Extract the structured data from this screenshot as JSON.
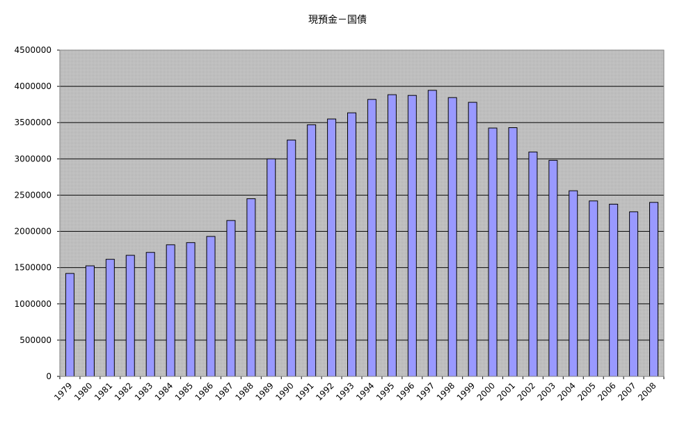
{
  "chart_data": {
    "type": "bar",
    "title": "現預金－国債",
    "xlabel": "",
    "ylabel": "",
    "categories": [
      "1979",
      "1980",
      "1981",
      "1982",
      "1983",
      "1984",
      "1985",
      "1986",
      "1987",
      "1988",
      "1989",
      "1990",
      "1991",
      "1992",
      "1993",
      "1994",
      "1995",
      "1996",
      "1997",
      "1998",
      "1999",
      "2000",
      "2001",
      "2002",
      "2003",
      "2004",
      "2005",
      "2006",
      "2007",
      "2008"
    ],
    "series": [
      {
        "values": [
          1420000,
          1525000,
          1615000,
          1670000,
          1710000,
          1815000,
          1845000,
          1930000,
          2150000,
          2450000,
          3000000,
          3260000,
          3470000,
          3550000,
          3635000,
          3820000,
          3885000,
          3875000,
          3945000,
          3845000,
          3780000,
          3425000,
          3430000,
          3095000,
          2980000,
          2560000,
          2420000,
          2375000,
          2270000,
          2400000
        ]
      }
    ],
    "ylim": [
      0,
      4500000
    ],
    "yticks": [
      0,
      500000,
      1000000,
      1500000,
      2000000,
      2500000,
      3000000,
      3500000,
      4000000,
      4500000
    ],
    "grid": true,
    "legend": "none",
    "colors": {
      "bar_fill": "#9999ff",
      "bar_stroke": "#000000",
      "plot_background": "#c0c0c0",
      "gridline": "#000000"
    }
  }
}
